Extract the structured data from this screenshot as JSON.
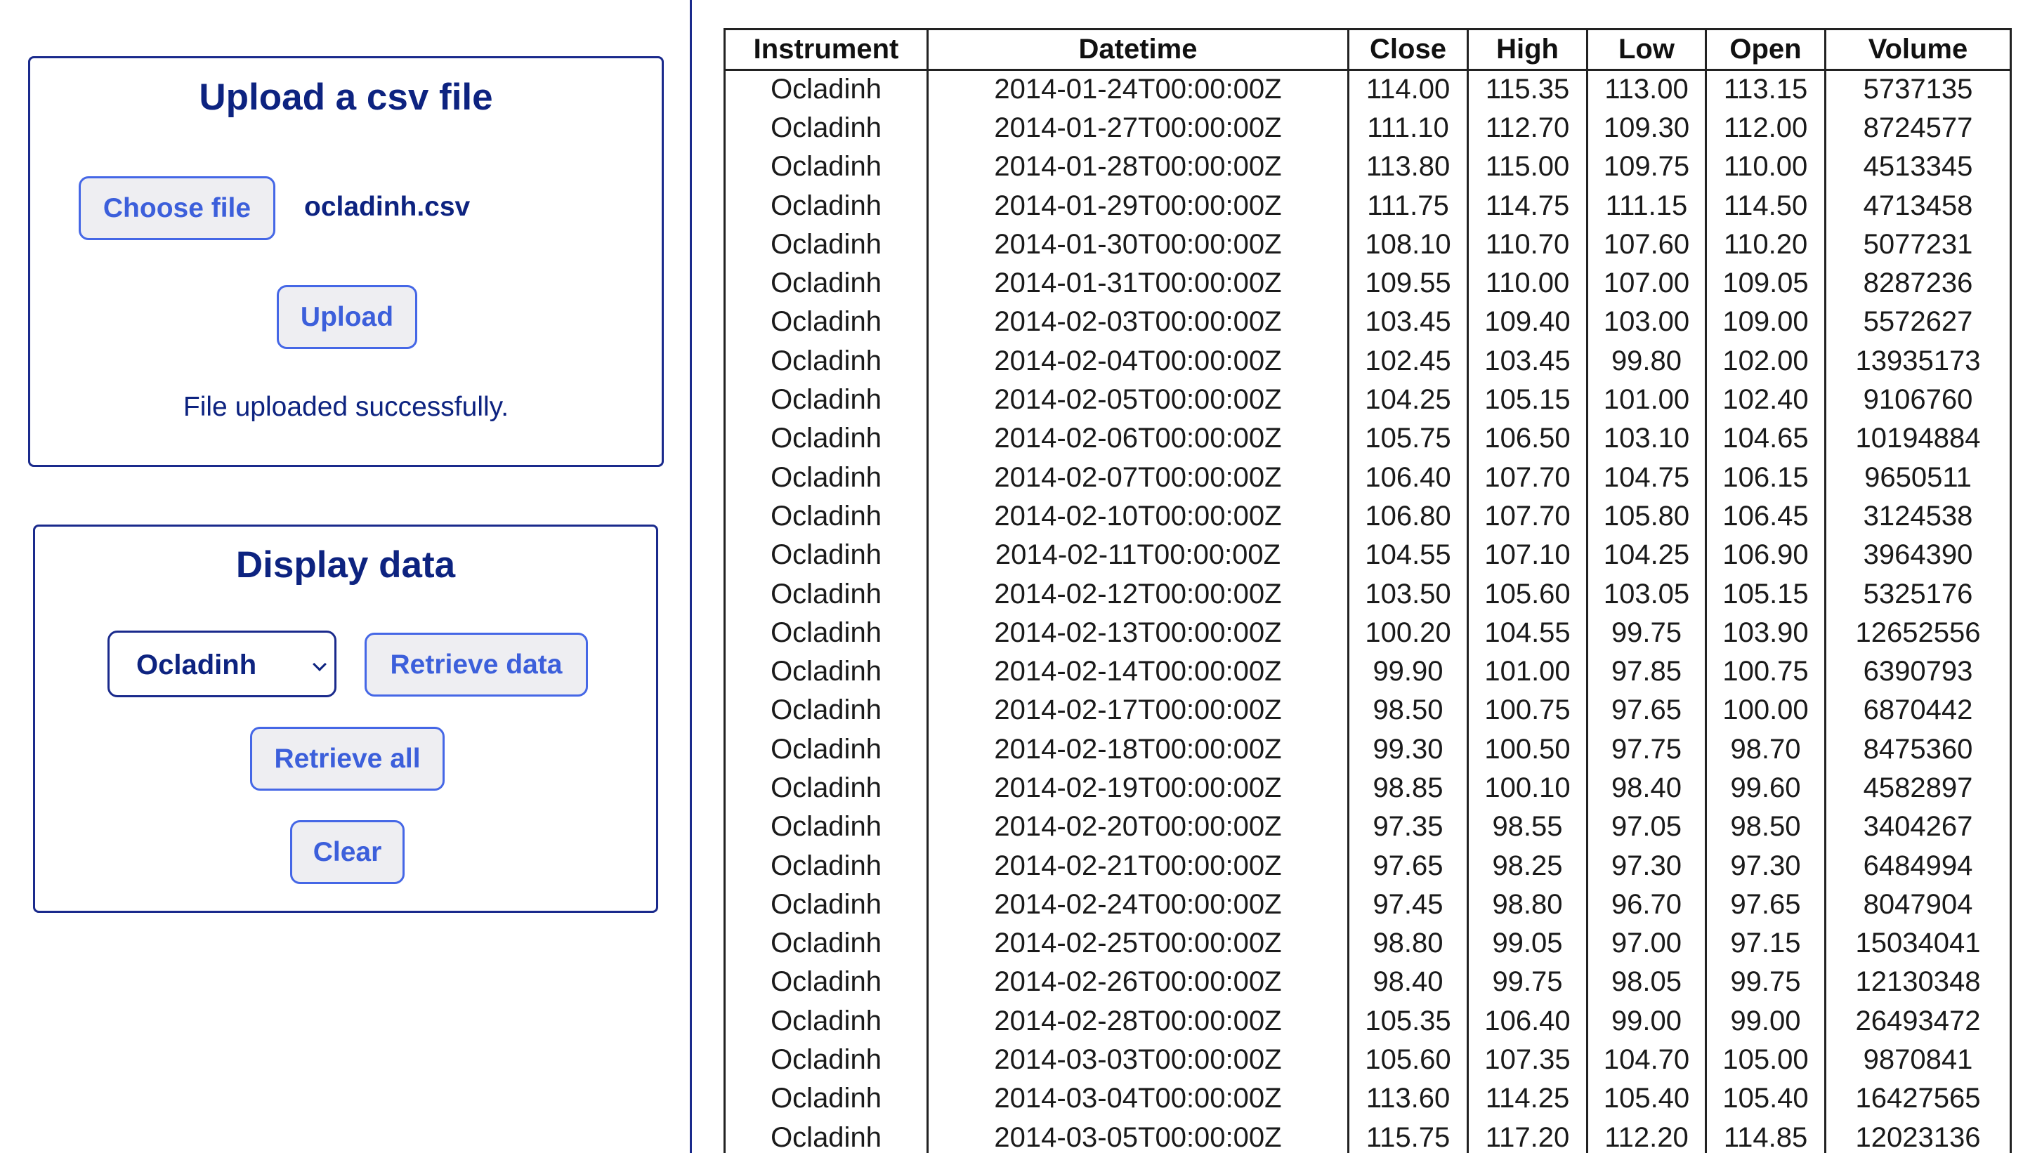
{
  "upload": {
    "title": "Upload a csv file",
    "choose_file_label": "Choose file",
    "file_name": "ocladinh.csv",
    "upload_label": "Upload",
    "status": "File uploaded successfully."
  },
  "display": {
    "title": "Display data",
    "selected_instrument": "Ocladinh",
    "retrieve_data_label": "Retrieve data",
    "retrieve_all_label": "Retrieve all",
    "clear_label": "Clear"
  },
  "table": {
    "columns": [
      "Instrument",
      "Datetime",
      "Close",
      "High",
      "Low",
      "Open",
      "Volume"
    ],
    "rows": [
      [
        "Ocladinh",
        "2014-01-24T00:00:00Z",
        "114.00",
        "115.35",
        "113.00",
        "113.15",
        "5737135"
      ],
      [
        "Ocladinh",
        "2014-01-27T00:00:00Z",
        "111.10",
        "112.70",
        "109.30",
        "112.00",
        "8724577"
      ],
      [
        "Ocladinh",
        "2014-01-28T00:00:00Z",
        "113.80",
        "115.00",
        "109.75",
        "110.00",
        "4513345"
      ],
      [
        "Ocladinh",
        "2014-01-29T00:00:00Z",
        "111.75",
        "114.75",
        "111.15",
        "114.50",
        "4713458"
      ],
      [
        "Ocladinh",
        "2014-01-30T00:00:00Z",
        "108.10",
        "110.70",
        "107.60",
        "110.20",
        "5077231"
      ],
      [
        "Ocladinh",
        "2014-01-31T00:00:00Z",
        "109.55",
        "110.00",
        "107.00",
        "109.05",
        "8287236"
      ],
      [
        "Ocladinh",
        "2014-02-03T00:00:00Z",
        "103.45",
        "109.40",
        "103.00",
        "109.00",
        "5572627"
      ],
      [
        "Ocladinh",
        "2014-02-04T00:00:00Z",
        "102.45",
        "103.45",
        "99.80",
        "102.00",
        "13935173"
      ],
      [
        "Ocladinh",
        "2014-02-05T00:00:00Z",
        "104.25",
        "105.15",
        "101.00",
        "102.40",
        "9106760"
      ],
      [
        "Ocladinh",
        "2014-02-06T00:00:00Z",
        "105.75",
        "106.50",
        "103.10",
        "104.65",
        "10194884"
      ],
      [
        "Ocladinh",
        "2014-02-07T00:00:00Z",
        "106.40",
        "107.70",
        "104.75",
        "106.15",
        "9650511"
      ],
      [
        "Ocladinh",
        "2014-02-10T00:00:00Z",
        "106.80",
        "107.70",
        "105.80",
        "106.45",
        "3124538"
      ],
      [
        "Ocladinh",
        "2014-02-11T00:00:00Z",
        "104.55",
        "107.10",
        "104.25",
        "106.90",
        "3964390"
      ],
      [
        "Ocladinh",
        "2014-02-12T00:00:00Z",
        "103.50",
        "105.60",
        "103.05",
        "105.15",
        "5325176"
      ],
      [
        "Ocladinh",
        "2014-02-13T00:00:00Z",
        "100.20",
        "104.55",
        "99.75",
        "103.90",
        "12652556"
      ],
      [
        "Ocladinh",
        "2014-02-14T00:00:00Z",
        "99.90",
        "101.00",
        "97.85",
        "100.75",
        "6390793"
      ],
      [
        "Ocladinh",
        "2014-02-17T00:00:00Z",
        "98.50",
        "100.75",
        "97.65",
        "100.00",
        "6870442"
      ],
      [
        "Ocladinh",
        "2014-02-18T00:00:00Z",
        "99.30",
        "100.50",
        "97.75",
        "98.70",
        "8475360"
      ],
      [
        "Ocladinh",
        "2014-02-19T00:00:00Z",
        "98.85",
        "100.10",
        "98.40",
        "99.60",
        "4582897"
      ],
      [
        "Ocladinh",
        "2014-02-20T00:00:00Z",
        "97.35",
        "98.55",
        "97.05",
        "98.50",
        "3404267"
      ],
      [
        "Ocladinh",
        "2014-02-21T00:00:00Z",
        "97.65",
        "98.25",
        "97.30",
        "97.30",
        "6484994"
      ],
      [
        "Ocladinh",
        "2014-02-24T00:00:00Z",
        "97.45",
        "98.80",
        "96.70",
        "97.65",
        "8047904"
      ],
      [
        "Ocladinh",
        "2014-02-25T00:00:00Z",
        "98.80",
        "99.05",
        "97.00",
        "97.15",
        "15034041"
      ],
      [
        "Ocladinh",
        "2014-02-26T00:00:00Z",
        "98.40",
        "99.75",
        "98.05",
        "99.75",
        "12130348"
      ],
      [
        "Ocladinh",
        "2014-02-28T00:00:00Z",
        "105.35",
        "106.40",
        "99.00",
        "99.00",
        "26493472"
      ],
      [
        "Ocladinh",
        "2014-03-03T00:00:00Z",
        "105.60",
        "107.35",
        "104.70",
        "105.00",
        "9870841"
      ],
      [
        "Ocladinh",
        "2014-03-04T00:00:00Z",
        "113.60",
        "114.25",
        "105.40",
        "105.40",
        "16427565"
      ],
      [
        "Ocladinh",
        "2014-03-05T00:00:00Z",
        "115.75",
        "117.20",
        "112.20",
        "114.85",
        "12023136"
      ]
    ]
  }
}
